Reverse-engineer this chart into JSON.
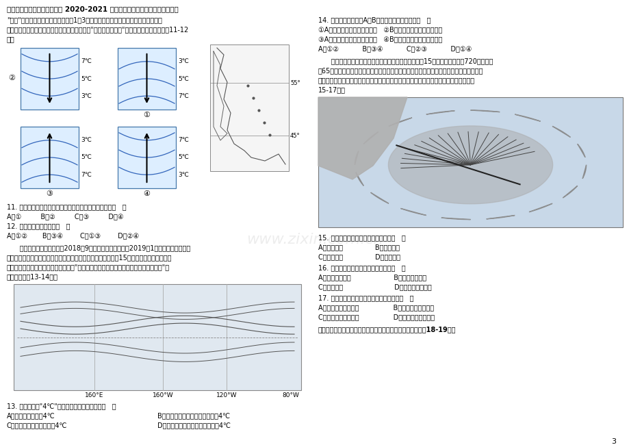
{
  "title": "广东省中山市卓雅外国语学校 2020-2021 学年高二地理下学期第一次段考试题",
  "bg_color": "#ffffff",
  "watermark": "www.zixin.com.cn",
  "page_number": "3"
}
